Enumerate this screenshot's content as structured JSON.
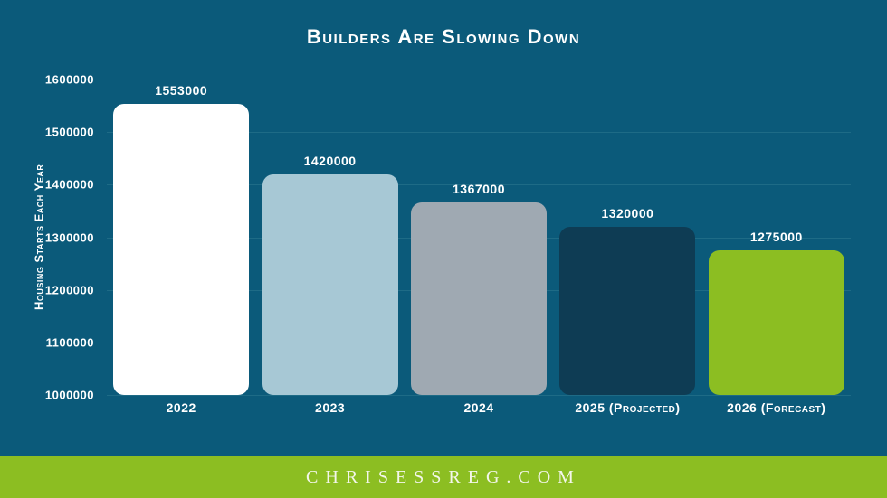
{
  "title": "Builders Are Slowing Down",
  "footer": {
    "text": "CHRISESSREG.COM"
  },
  "colors": {
    "background": "#0b5a7a",
    "grid": "#1e6b86",
    "text": "#ffffff",
    "footer_band": "#8cbe22",
    "footer_text": "#f3f6ea",
    "bar_colors": [
      "#ffffff",
      "#a7c8d5",
      "#9fa9b2",
      "#0e3c54",
      "#8cbe22"
    ]
  },
  "chart_data": {
    "type": "bar",
    "title": "Builders Are Slowing Down",
    "xlabel": "",
    "ylabel": "Housing Starts Each Year",
    "categories": [
      "2022",
      "2023",
      "2024",
      "2025 (Projected)",
      "2026 (Forecast)"
    ],
    "values": [
      1553000,
      1420000,
      1367000,
      1320000,
      1275000
    ],
    "data_labels": [
      "1553000",
      "1420000",
      "1367000",
      "1320000",
      "1275000"
    ],
    "ylim": [
      1000000,
      1600000
    ],
    "yticks": [
      1000000,
      1100000,
      1200000,
      1300000,
      1400000,
      1500000,
      1600000
    ],
    "grid": true,
    "legend": false
  }
}
